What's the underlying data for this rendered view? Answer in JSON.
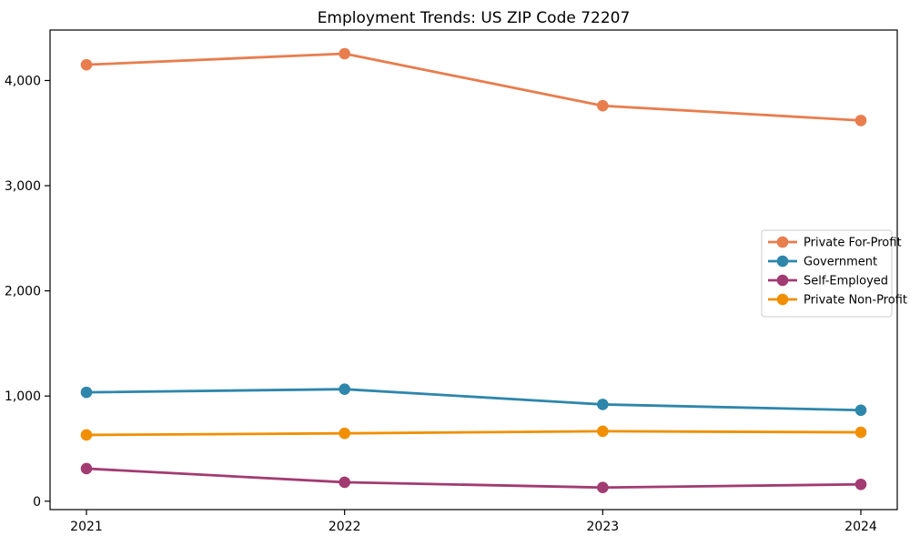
{
  "chart_data": {
    "type": "line",
    "title": "Employment Trends: US ZIP Code 72207",
    "xlabel": "",
    "ylabel": "",
    "categories": [
      "2021",
      "2022",
      "2023",
      "2024"
    ],
    "series": [
      {
        "name": "Private For-Profit",
        "color": "#e87d4e",
        "values": [
          4150,
          4255,
          3760,
          3620
        ]
      },
      {
        "name": "Government",
        "color": "#2e86ab",
        "values": [
          1035,
          1065,
          920,
          865
        ]
      },
      {
        "name": "Self-Employed",
        "color": "#a23b72",
        "values": [
          310,
          180,
          130,
          160
        ]
      },
      {
        "name": "Private Non-Profit",
        "color": "#f18f01",
        "values": [
          630,
          645,
          665,
          655
        ]
      }
    ],
    "ylim": [
      -80,
      4480
    ],
    "yticks": [
      {
        "value": 0,
        "label": "0"
      },
      {
        "value": 1000,
        "label": "1,000"
      },
      {
        "value": 2000,
        "label": "2,000"
      },
      {
        "value": 3000,
        "label": "3,000"
      },
      {
        "value": 4000,
        "label": "4,000"
      }
    ],
    "legend_position": "center right",
    "grid": false,
    "marker": "circle",
    "frame_color": "#000000",
    "legend_border_color": "#cccccc",
    "background_color": "#ffffff"
  }
}
